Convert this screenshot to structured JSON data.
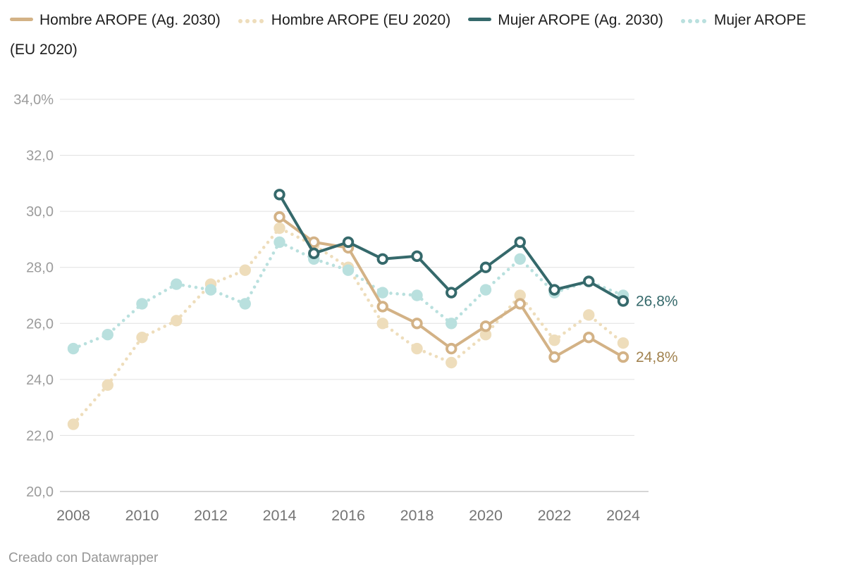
{
  "legend": {
    "items": [
      {
        "label": "Hombre AROPE (Ag. 2030)",
        "style": "solid",
        "color": "#d3b286"
      },
      {
        "label": "Hombre AROPE (EU 2020)",
        "style": "dotted",
        "color": "#eeddbb"
      },
      {
        "label": "Mujer AROPE (Ag. 2030)",
        "style": "solid",
        "color": "#35696b"
      },
      {
        "label": "Mujer AROPE (EU 2020)",
        "style": "dotted",
        "color": "#b9e0de",
        "label_line1": "Mujer AROPE",
        "label_line2": "(EU 2020)"
      }
    ]
  },
  "footer": {
    "credit": "Creado con Datawrapper"
  },
  "colors": {
    "grid": "#e0e0e0",
    "baseline": "#c9c9c9",
    "y_tick_text": "#9c9c9c",
    "x_tick_text": "#757575",
    "legend_text": "#1d1d1d",
    "footer_text": "#979797"
  },
  "chart_data": {
    "type": "line",
    "x": [
      2008,
      2009,
      2010,
      2011,
      2012,
      2013,
      2014,
      2015,
      2016,
      2017,
      2018,
      2019,
      2020,
      2021,
      2022,
      2023,
      2024
    ],
    "x_axis": {
      "tick_years": [
        2008,
        2010,
        2012,
        2014,
        2016,
        2018,
        2020,
        2022,
        2024
      ],
      "tick_labels": [
        "2008",
        "2010",
        "2012",
        "2014",
        "2016",
        "2018",
        "2020",
        "2022",
        "2024"
      ]
    },
    "y_axis": {
      "ticks": [
        34,
        32,
        30,
        28,
        26,
        24,
        22,
        20
      ],
      "tick_labels": [
        "34,0%",
        "32,0",
        "30,0",
        "28,0",
        "26,0",
        "24,0",
        "22,0",
        "20,0"
      ],
      "range": [
        20,
        34
      ]
    },
    "grid": true,
    "legend_position": "top",
    "series": [
      {
        "id": "hombre_eu",
        "name": "Hombre AROPE (EU 2020)",
        "style": "dotted",
        "color": "#eeddbb",
        "values": [
          22.4,
          23.8,
          25.5,
          26.1,
          27.4,
          27.9,
          29.4,
          28.8,
          28.0,
          26.0,
          25.1,
          24.6,
          25.6,
          27.0,
          25.4,
          26.3,
          25.3
        ]
      },
      {
        "id": "mujer_eu",
        "name": "Mujer AROPE (EU 2020)",
        "style": "dotted",
        "color": "#b9e0de",
        "values": [
          25.1,
          25.6,
          26.7,
          27.4,
          27.2,
          26.7,
          28.9,
          28.3,
          27.9,
          27.1,
          27.0,
          26.0,
          27.2,
          28.3,
          27.1,
          27.5,
          27.0
        ]
      },
      {
        "id": "hombre_ag",
        "name": "Hombre AROPE (Ag. 2030)",
        "style": "solid",
        "color": "#d3b286",
        "values": [
          null,
          null,
          null,
          null,
          null,
          null,
          29.8,
          28.9,
          28.7,
          26.6,
          26.0,
          25.1,
          25.9,
          26.7,
          24.8,
          25.5,
          24.8
        ],
        "end_label": "24,8%",
        "end_label_color": "#a28350"
      },
      {
        "id": "mujer_ag",
        "name": "Mujer AROPE (Ag. 2030)",
        "style": "solid",
        "color": "#35696b",
        "values": [
          null,
          null,
          null,
          null,
          null,
          null,
          30.6,
          28.5,
          28.9,
          28.3,
          28.4,
          27.1,
          28.0,
          28.9,
          27.2,
          27.5,
          26.8
        ],
        "end_label": "26,8%",
        "end_label_color": "#35696b"
      }
    ]
  }
}
